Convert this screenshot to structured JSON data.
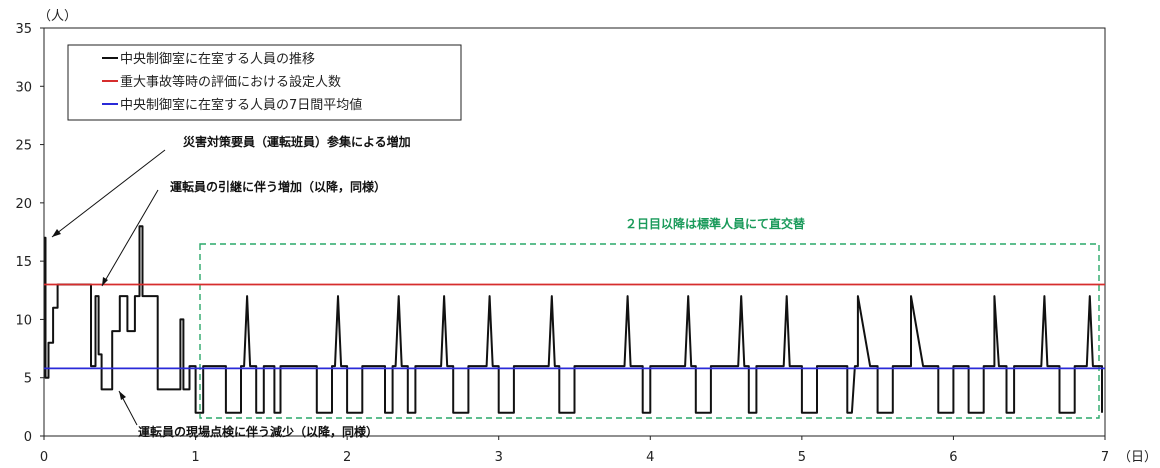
{
  "chart_data": {
    "type": "line",
    "y_unit": "（人）",
    "x_unit": "（日）",
    "xlim": [
      0,
      7
    ],
    "ylim": [
      0,
      35
    ],
    "x_ticks": [
      "0",
      "1",
      "2",
      "3",
      "4",
      "5",
      "6",
      "7"
    ],
    "y_ticks": [
      "0",
      "5",
      "10",
      "15",
      "20",
      "25",
      "30",
      "35"
    ],
    "grid": false,
    "legend_position": "top-left",
    "series": [
      {
        "name": "中央制御室に在室する人員の推移",
        "color": "#111111",
        "x": [
          0,
          0.01,
          0.01,
          0.03,
          0.03,
          0.06,
          0.06,
          0.09,
          0.09,
          0.1,
          0.3,
          0.31,
          0.31,
          0.34,
          0.34,
          0.36,
          0.36,
          0.38,
          0.38,
          0.45,
          0.45,
          0.5,
          0.5,
          0.55,
          0.55,
          0.6,
          0.6,
          0.63,
          0.63,
          0.65,
          0.65,
          0.67,
          0.67,
          0.75,
          0.75,
          0.9,
          0.9,
          0.92,
          0.92,
          0.96,
          0.96,
          1.0,
          1.0,
          1.05,
          1.05,
          1.1,
          1.1,
          1.2,
          1.2,
          1.3,
          1.3,
          1.32,
          1.34,
          1.36,
          1.36,
          1.4,
          1.4,
          1.45,
          1.45,
          1.5,
          1.5,
          1.52,
          1.52,
          1.56,
          1.56,
          1.7,
          1.7,
          1.8,
          1.8,
          1.9,
          1.9,
          1.92,
          1.94,
          1.96,
          1.96,
          2.0,
          2.0,
          2.1,
          2.1,
          2.15,
          2.15,
          2.25,
          2.25,
          2.3,
          2.3,
          2.32,
          2.34,
          2.36,
          2.36,
          2.4,
          2.4,
          2.45,
          2.45,
          2.55,
          2.55,
          2.6,
          2.6,
          2.62,
          2.64,
          2.66,
          2.66,
          2.7,
          2.7,
          2.8,
          2.8,
          2.85,
          2.85,
          2.9,
          2.9,
          2.92,
          2.94,
          2.96,
          2.96,
          3.0,
          3.0,
          3.1,
          3.1,
          3.2,
          3.2,
          3.3,
          3.3,
          3.33,
          3.35,
          3.37,
          3.37,
          3.4,
          3.4,
          3.5,
          3.5,
          3.7,
          3.7,
          3.8,
          3.8,
          3.83,
          3.85,
          3.87,
          3.87,
          3.95,
          3.95,
          4.0,
          4.0,
          4.15,
          4.15,
          4.2,
          4.2,
          4.23,
          4.25,
          4.27,
          4.27,
          4.3,
          4.3,
          4.4,
          4.4,
          4.55,
          4.55,
          4.58,
          4.6,
          4.62,
          4.62,
          4.65,
          4.65,
          4.7,
          4.7,
          4.8,
          4.8,
          4.85,
          4.85,
          4.88,
          4.9,
          4.92,
          4.92,
          5.0,
          5.0,
          5.1,
          5.1,
          5.2,
          5.2,
          5.3,
          5.3,
          5.33,
          5.35,
          5.37,
          5.37,
          5.45,
          5.45,
          5.5,
          5.5,
          5.6,
          5.6,
          5.65,
          5.65,
          5.68,
          5.7,
          5.72,
          5.72,
          5.8,
          5.8,
          5.9,
          5.9,
          6.0,
          6.0,
          6.1,
          6.1,
          6.2,
          6.2,
          6.23,
          6.25,
          6.27,
          6.27,
          6.3,
          6.3,
          6.35,
          6.35,
          6.4,
          6.4,
          6.5,
          6.5,
          6.55,
          6.55,
          6.58,
          6.6,
          6.62,
          6.62,
          6.7,
          6.7,
          6.8,
          6.8,
          6.85,
          6.85,
          6.88,
          6.9,
          6.92,
          6.92,
          6.98,
          6.98
        ],
        "y": [
          17,
          17,
          5,
          5,
          8,
          8,
          11,
          11,
          13,
          13,
          13,
          13,
          6,
          6,
          12,
          12,
          7,
          7,
          4,
          4,
          9,
          9,
          12,
          12,
          9,
          9,
          12,
          12,
          18,
          18,
          12,
          12,
          12,
          12,
          4,
          4,
          10,
          10,
          4,
          4,
          6,
          6,
          2,
          2,
          6,
          6,
          6,
          6,
          2,
          2,
          6,
          6,
          12,
          6,
          6,
          6,
          2,
          2,
          6,
          6,
          6,
          6,
          2,
          2,
          6,
          6,
          6,
          6,
          2,
          2,
          6,
          6,
          12,
          6,
          6,
          6,
          2,
          2,
          6,
          6,
          6,
          6,
          2,
          2,
          6,
          6,
          12,
          6,
          6,
          6,
          2,
          2,
          6,
          6,
          6,
          6,
          6,
          6,
          12,
          6,
          6,
          6,
          2,
          2,
          6,
          6,
          6,
          6,
          6,
          6,
          12,
          6,
          6,
          6,
          2,
          2,
          6,
          6,
          6,
          6,
          6,
          6,
          12,
          6,
          6,
          6,
          2,
          2,
          6,
          6,
          6,
          6,
          6,
          6,
          12,
          6,
          6,
          6,
          2,
          2,
          6,
          6,
          6,
          6,
          6,
          6,
          12,
          6,
          6,
          6,
          2,
          2,
          6,
          6,
          6,
          6,
          12,
          6,
          6,
          6,
          2,
          2,
          6,
          6,
          6,
          6,
          6,
          6,
          12,
          6,
          6,
          6,
          2,
          2,
          6,
          6,
          6,
          6,
          2,
          2,
          6,
          6,
          12,
          6,
          6,
          6,
          2,
          2,
          6,
          6,
          6,
          6,
          6,
          6,
          12,
          6,
          6,
          6,
          2,
          2,
          6,
          6,
          2,
          2,
          6,
          6,
          6,
          6,
          12,
          6,
          6,
          6,
          2,
          2,
          6,
          6,
          6,
          6,
          6,
          6,
          12,
          6,
          6,
          6,
          2,
          2,
          6,
          6,
          6,
          6,
          12,
          6,
          6,
          6,
          2
        ]
      },
      {
        "name": "重大事故等時の評価における設定人数",
        "color": "#d62d2d",
        "x": [
          0,
          7
        ],
        "y": [
          13,
          13
        ]
      },
      {
        "name": "中央制御室に在室する人員の7日間平均値",
        "color": "#2a2ad8",
        "x": [
          0,
          7
        ],
        "y": [
          5.8,
          5.8
        ]
      }
    ],
    "annotations": [
      "災害対策要員（運転班員）参集による増加",
      "運転員の引継に伴う増加（以降，同様）",
      "２日目以降は標準人員にて直交替",
      "運転員の現場点検に伴う減少（以降，同様）"
    ]
  }
}
